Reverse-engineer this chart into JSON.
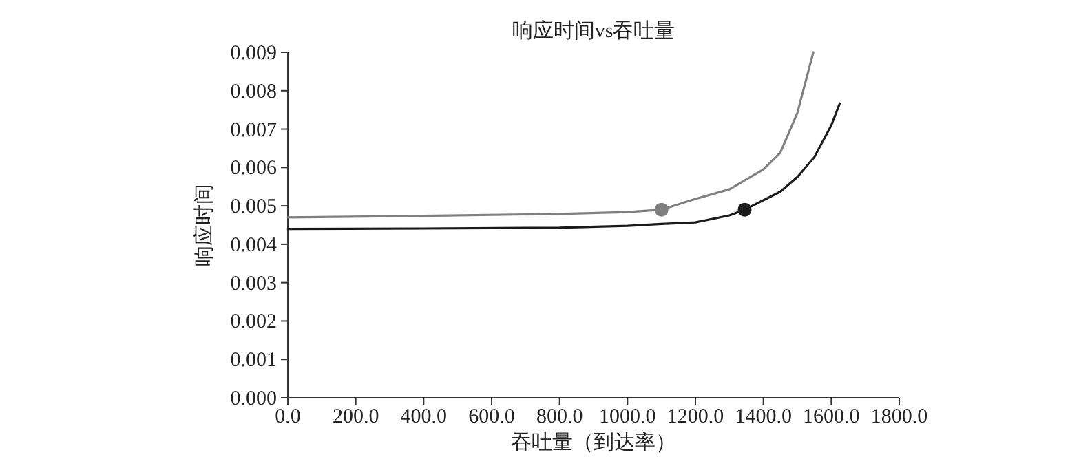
{
  "chart_data": {
    "type": "line",
    "title": "响应时间vs吞吐量",
    "xlabel": "吞吐量（到达率）",
    "ylabel": "响应时间",
    "xlim": [
      0,
      1800
    ],
    "ylim": [
      0,
      0.009
    ],
    "xticks": [
      {
        "value": 0,
        "label": "0.0"
      },
      {
        "value": 200,
        "label": "200.0"
      },
      {
        "value": 400,
        "label": "400.0"
      },
      {
        "value": 600,
        "label": "600.0"
      },
      {
        "value": 800,
        "label": "800.0"
      },
      {
        "value": 1000,
        "label": "1000.0"
      },
      {
        "value": 1200,
        "label": "1200.0"
      },
      {
        "value": 1400,
        "label": "1400.0"
      },
      {
        "value": 1600,
        "label": "1600.0"
      },
      {
        "value": 1800,
        "label": "1800.0"
      }
    ],
    "yticks": [
      {
        "value": 0,
        "label": "0.000"
      },
      {
        "value": 0.001,
        "label": "0.001"
      },
      {
        "value": 0.002,
        "label": "0.002"
      },
      {
        "value": 0.003,
        "label": "0.003"
      },
      {
        "value": 0.004,
        "label": "0.004"
      },
      {
        "value": 0.005,
        "label": "0.005"
      },
      {
        "value": 0.006,
        "label": "0.006"
      },
      {
        "value": 0.007,
        "label": "0.007"
      },
      {
        "value": 0.008,
        "label": "0.008"
      },
      {
        "value": 0.009,
        "label": "0.009"
      }
    ],
    "grid": false,
    "marker": "none",
    "line_style": "solid",
    "series": [
      {
        "color": "#808080",
        "x": [
          0,
          400,
          800,
          1000,
          1100,
          1200,
          1300,
          1400,
          1450,
          1500,
          1547
        ],
        "values": [
          0.0047,
          0.00474,
          0.00479,
          0.00484,
          0.0049,
          0.00518,
          0.00543,
          0.00595,
          0.00639,
          0.00742,
          0.009
        ]
      },
      {
        "color": "#1a1a1a",
        "x": [
          0,
          400,
          800,
          1000,
          1100,
          1200,
          1300,
          1345,
          1450,
          1500,
          1550,
          1600,
          1625
        ],
        "values": [
          0.0044,
          0.00441,
          0.00443,
          0.00448,
          0.00453,
          0.00457,
          0.00475,
          0.0049,
          0.00537,
          0.00575,
          0.00627,
          0.0071,
          0.00767
        ]
      },
      {
        "type": "scatter",
        "marker": "circle",
        "color": "#808080",
        "x": [
          1100
        ],
        "values": [
          0.0049
        ]
      },
      {
        "type": "scatter",
        "marker": "circle",
        "color": "#1a1a1a",
        "x": [
          1345
        ],
        "values": [
          0.0049
        ]
      }
    ]
  }
}
